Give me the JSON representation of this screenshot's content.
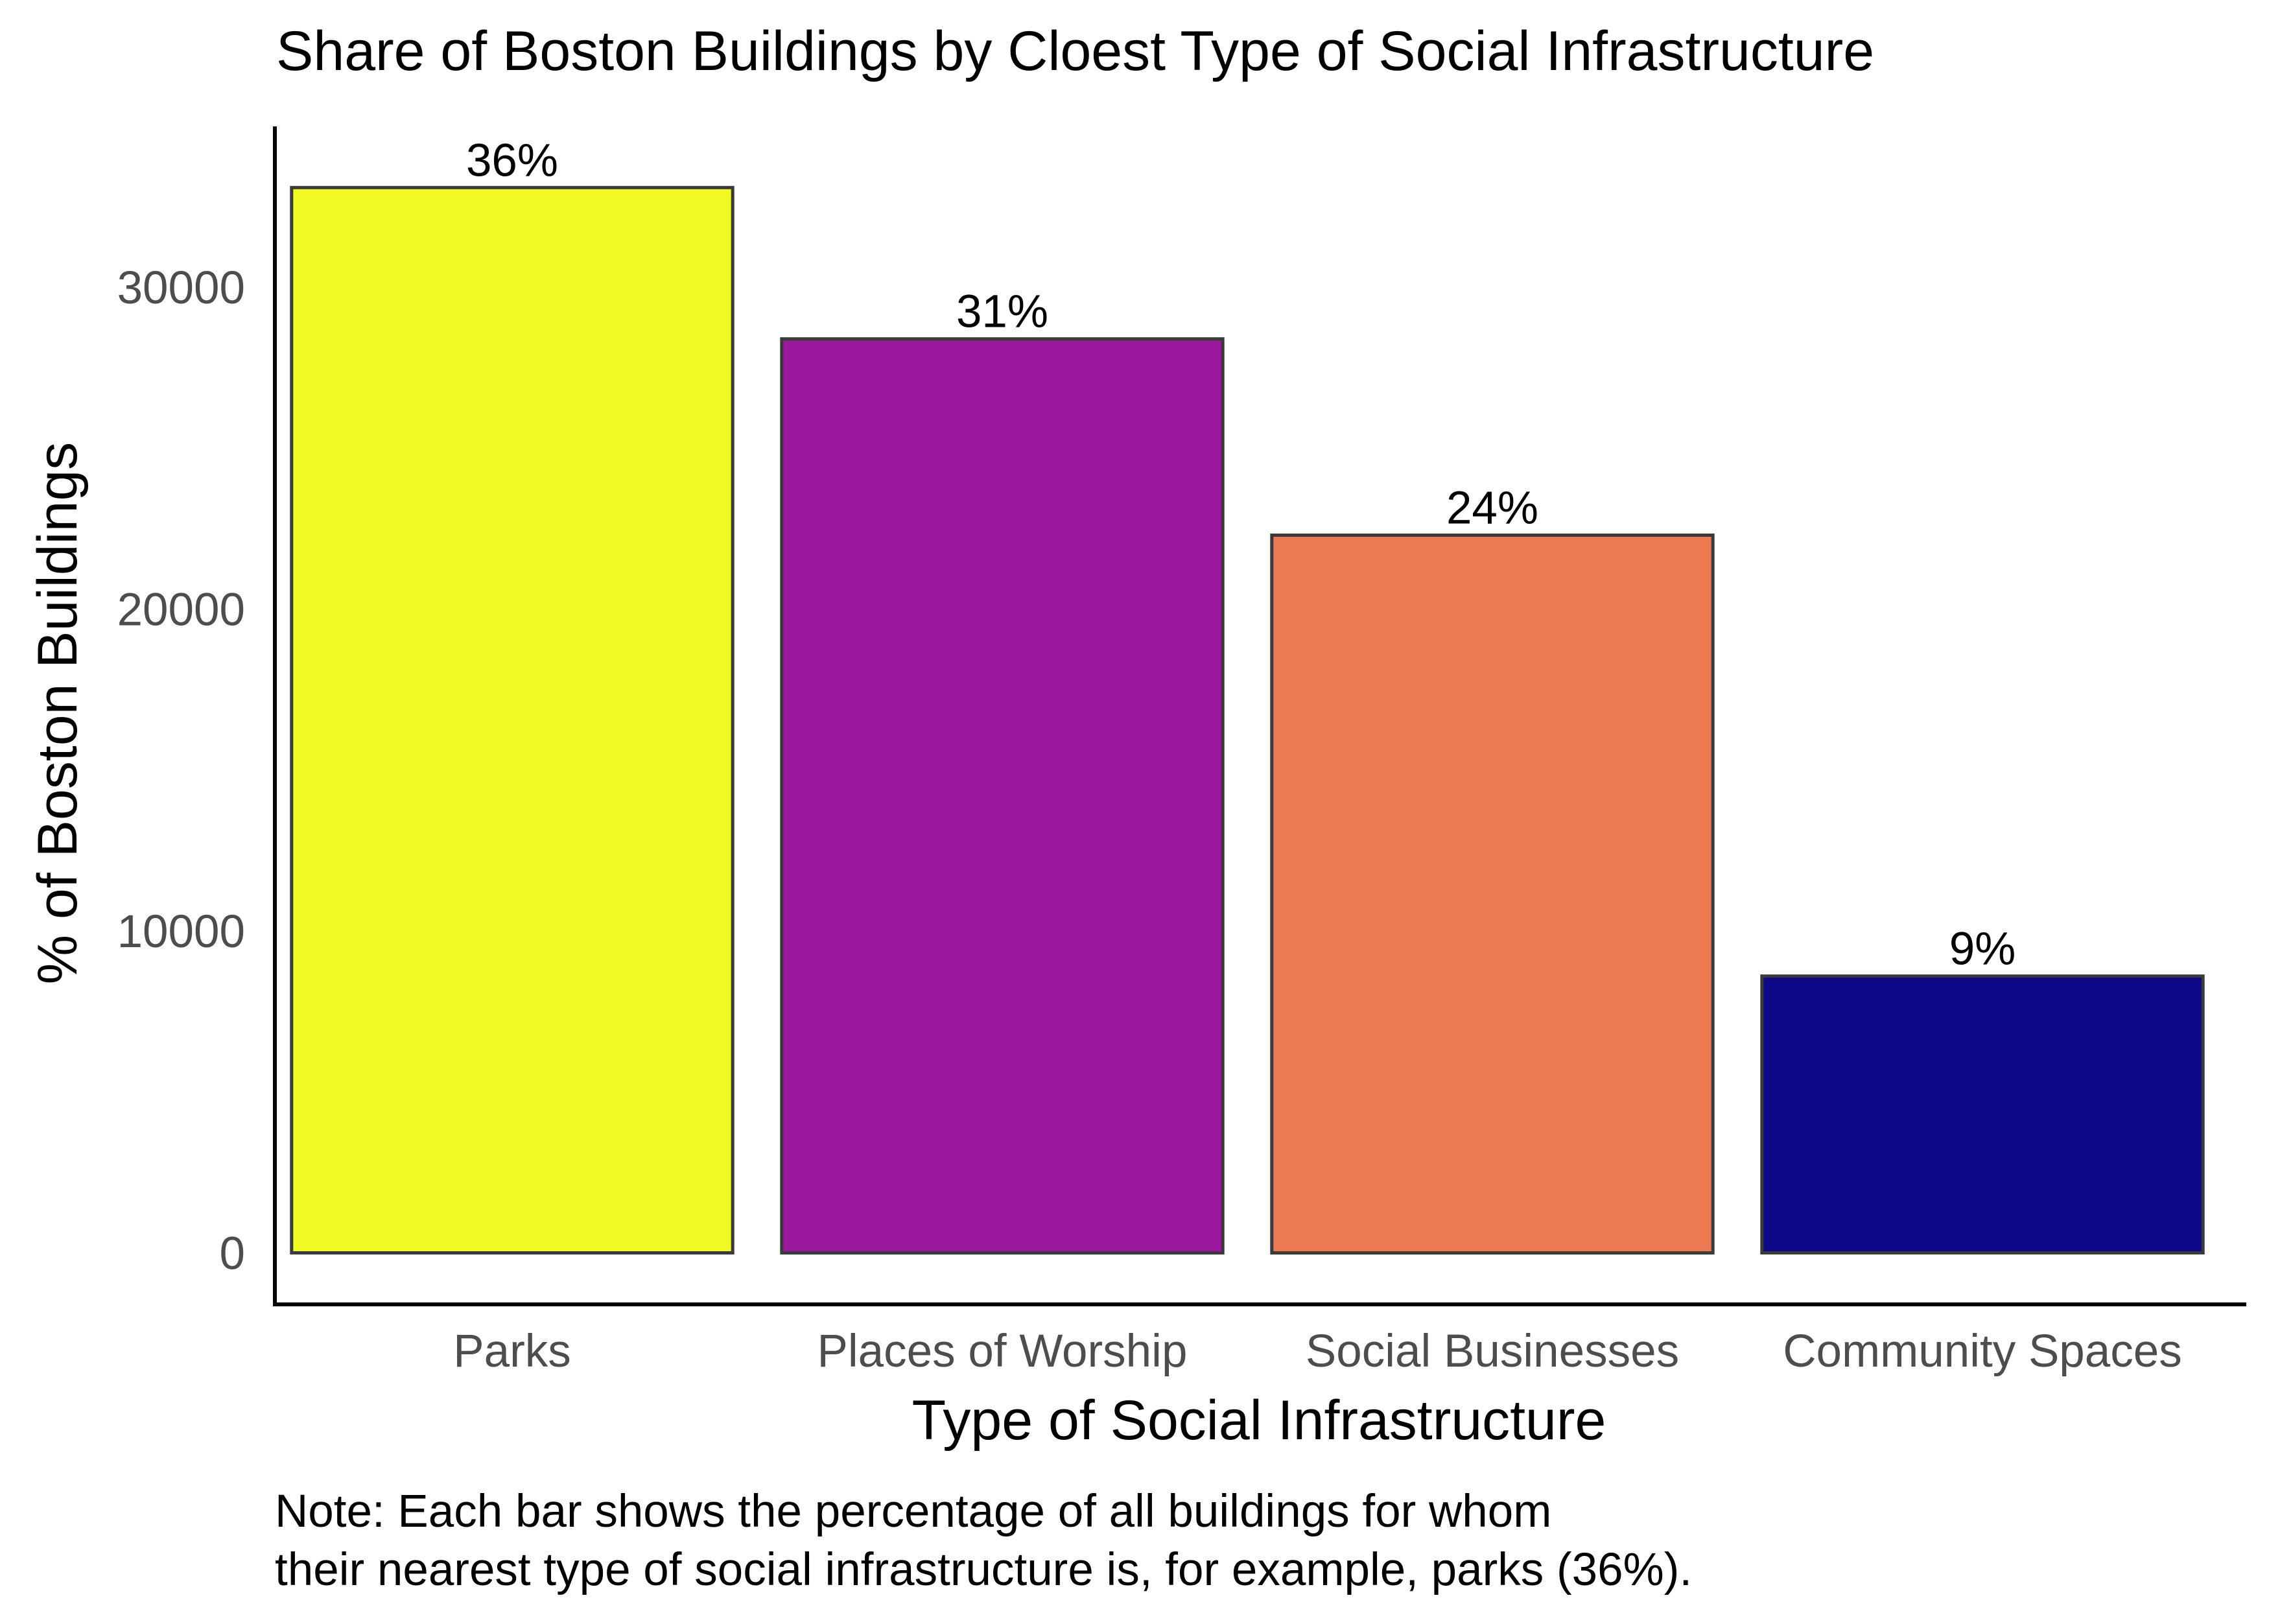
{
  "chart_data": {
    "type": "bar",
    "title": "Share of Boston Buildings by Cloest Type of Social Infrastructure",
    "xlabel": "Type of Social Infrastructure",
    "ylabel": "% of Boston Buildings",
    "categories": [
      "Parks",
      "Places of Worship",
      "Social Businesses",
      "Community Spaces"
    ],
    "values": [
      33100,
      28400,
      22300,
      8600
    ],
    "data_labels": [
      "36%",
      "31%",
      "24%",
      "9%"
    ],
    "colors": [
      "#F0F921",
      "#9C179E",
      "#ED7953",
      "#0D0887"
    ],
    "bar_outline_color": "#3A3A3A",
    "ylim": [
      -1600,
      35000
    ],
    "y_ticks": [
      0,
      10000,
      20000,
      30000
    ],
    "y_tick_labels": [
      "0",
      "10000",
      "20000",
      "30000"
    ],
    "grid": false,
    "legend": "none",
    "note_lines": [
      "Note: Each bar shows the percentage of all buildings for whom",
      "their nearest type of social infrastructure is, for example, parks (36%)."
    ]
  }
}
